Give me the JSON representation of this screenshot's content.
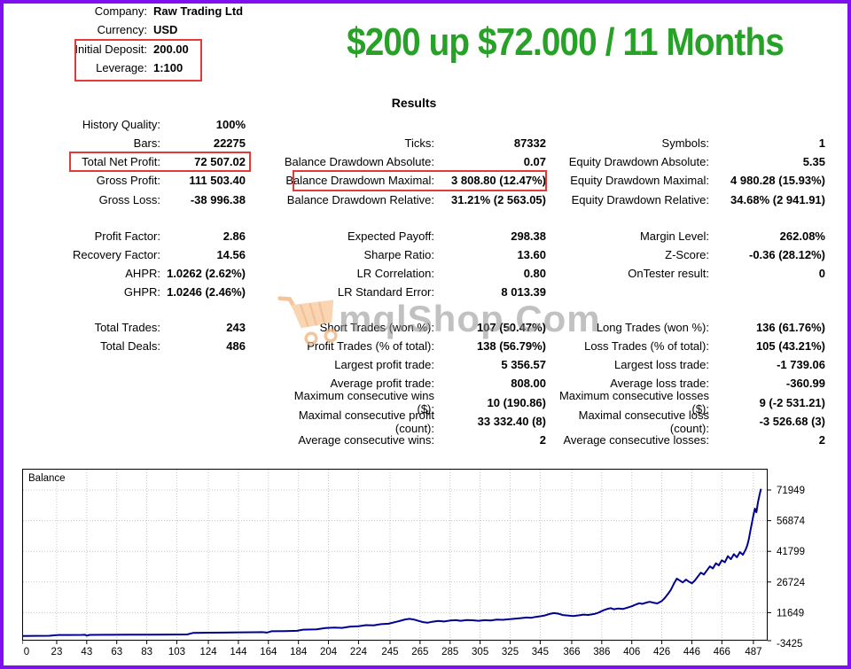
{
  "header": {
    "rows": [
      {
        "label": "Company:",
        "value": "Raw Trading Ltd"
      },
      {
        "label": "Currency:",
        "value": "USD"
      },
      {
        "label": "Initial Deposit:",
        "value": "200.00",
        "boxed": true
      },
      {
        "label": "Leverage:",
        "value": "1:100",
        "boxed": true
      }
    ],
    "banner_title": "$200 up $72.000 / 11 Months"
  },
  "results_heading": "Results",
  "watermark": {
    "text": "mqlShop.Com",
    "icon": "shopping-cart-icon"
  },
  "colors": {
    "accent_green": "#27a127",
    "highlight_red": "#e23a3a",
    "border_purple": "#7e10f0",
    "balance_line_navy": "#000090",
    "watermark_gray": "#8f8f8f",
    "cart_orange": "#f6bd8d"
  },
  "stats": {
    "col1": {
      "blocks": [
        {
          "rows": [
            {
              "label": "History Quality:",
              "value": "100%"
            },
            {
              "label": "Bars:",
              "value": "22275"
            },
            {
              "label": "Total Net Profit:",
              "value": "72 507.02",
              "boxed": true
            },
            {
              "label": "Gross Profit:",
              "value": "111 503.40"
            },
            {
              "label": "Gross Loss:",
              "value": "-38 996.38"
            }
          ]
        },
        {
          "rows": [
            {
              "label": "Profit Factor:",
              "value": "2.86"
            },
            {
              "label": "Recovery Factor:",
              "value": "14.56"
            },
            {
              "label": "AHPR:",
              "value": "1.0262 (2.62%)"
            },
            {
              "label": "GHPR:",
              "value": "1.0246 (2.46%)"
            }
          ]
        },
        {
          "rows": [
            {
              "label": "Total Trades:",
              "value": "243"
            },
            {
              "label": "Total Deals:",
              "value": "486"
            }
          ]
        }
      ]
    },
    "col2": {
      "blocks": [
        {
          "rows": [
            {
              "label": "Ticks:",
              "value": "87332"
            },
            {
              "label": "Balance Drawdown Absolute:",
              "value": "0.07"
            },
            {
              "label": "Balance Drawdown Maximal:",
              "value": "3 808.80 (12.47%)",
              "boxed": true
            },
            {
              "label": "Balance Drawdown Relative:",
              "value": "31.21% (2 563.05)"
            }
          ]
        },
        {
          "rows": [
            {
              "label": "Expected Payoff:",
              "value": "298.38"
            },
            {
              "label": "Sharpe Ratio:",
              "value": "13.60"
            },
            {
              "label": "LR Correlation:",
              "value": "0.80"
            },
            {
              "label": "LR Standard Error:",
              "value": "8 013.39"
            }
          ]
        },
        {
          "rows": [
            {
              "label": "Short Trades (won %):",
              "value": "107 (50.47%)"
            },
            {
              "label": "Profit Trades (% of total):",
              "value": "138 (56.79%)"
            },
            {
              "label": "Largest profit trade:",
              "value": "5 356.57"
            },
            {
              "label": "Average profit trade:",
              "value": "808.00"
            },
            {
              "label": "Maximum consecutive wins ($):",
              "value": "10 (190.86)"
            },
            {
              "label": "Maximal consecutive profit (count):",
              "value": "33 332.40 (8)"
            },
            {
              "label": "Average consecutive wins:",
              "value": "2"
            }
          ]
        }
      ]
    },
    "col3": {
      "blocks": [
        {
          "rows": [
            {
              "label": "Symbols:",
              "value": "1"
            },
            {
              "label": "Equity Drawdown Absolute:",
              "value": "5.35"
            },
            {
              "label": "Equity Drawdown Maximal:",
              "value": "4 980.28 (15.93%)"
            },
            {
              "label": "Equity Drawdown Relative:",
              "value": "34.68% (2 941.91)"
            }
          ]
        },
        {
          "rows": [
            {
              "label": "Margin Level:",
              "value": "262.08%"
            },
            {
              "label": "Z-Score:",
              "value": "-0.36 (28.12%)"
            },
            {
              "label": "OnTester result:",
              "value": "0"
            }
          ]
        },
        {
          "rows": [
            {
              "label": "Long Trades (won %):",
              "value": "136 (61.76%)"
            },
            {
              "label": "Loss Trades (% of total):",
              "value": "105 (43.21%)"
            },
            {
              "label": "Largest loss trade:",
              "value": "-1 739.06"
            },
            {
              "label": "Average loss trade:",
              "value": "-360.99"
            },
            {
              "label": "Maximum consecutive losses ($):",
              "value": "9 (-2 531.21)"
            },
            {
              "label": "Maximal consecutive loss (count):",
              "value": "-3 526.68 (3)"
            },
            {
              "label": "Average consecutive losses:",
              "value": "2"
            }
          ]
        }
      ]
    }
  },
  "chart_data": {
    "type": "line",
    "title": "Balance",
    "legend_label": "Balance",
    "x_ticks": [
      0,
      23,
      43,
      63,
      83,
      103,
      124,
      144,
      164,
      184,
      204,
      224,
      245,
      265,
      285,
      305,
      325,
      345,
      366,
      386,
      406,
      426,
      446,
      466,
      487
    ],
    "y_ticks": [
      71949,
      56874,
      41799,
      26724,
      11649,
      -3425
    ],
    "x_range": [
      0,
      496.5
    ],
    "y_range": [
      -2120,
      82406
    ],
    "grid": true,
    "legend_position": "top-left-inside",
    "series": [
      {
        "name": "Balance",
        "color": "#000090",
        "points": [
          [
            0,
            200
          ],
          [
            8,
            230
          ],
          [
            18,
            260
          ],
          [
            24,
            650
          ],
          [
            30,
            680
          ],
          [
            40,
            720
          ],
          [
            42,
            740
          ],
          [
            43,
            300
          ],
          [
            45,
            700
          ],
          [
            55,
            760
          ],
          [
            70,
            800
          ],
          [
            85,
            840
          ],
          [
            100,
            880
          ],
          [
            110,
            920
          ],
          [
            114,
            1700
          ],
          [
            125,
            1800
          ],
          [
            140,
            1900
          ],
          [
            155,
            2000
          ],
          [
            160,
            2050
          ],
          [
            163,
            1850
          ],
          [
            166,
            2500
          ],
          [
            175,
            2600
          ],
          [
            183,
            2700
          ],
          [
            187,
            3300
          ],
          [
            196,
            3400
          ],
          [
            202,
            4100
          ],
          [
            208,
            4300
          ],
          [
            213,
            4150
          ],
          [
            218,
            4700
          ],
          [
            224,
            4950
          ],
          [
            229,
            5500
          ],
          [
            234,
            5400
          ],
          [
            239,
            6000
          ],
          [
            244,
            6200
          ],
          [
            249,
            7100
          ],
          [
            252,
            7700
          ],
          [
            255,
            8300
          ],
          [
            258,
            8600
          ],
          [
            261,
            8250
          ],
          [
            264,
            7600
          ],
          [
            267,
            7000
          ],
          [
            270,
            6700
          ],
          [
            273,
            7150
          ],
          [
            277,
            7550
          ],
          [
            281,
            7300
          ],
          [
            285,
            7750
          ],
          [
            289,
            7950
          ],
          [
            292,
            7650
          ],
          [
            296,
            8050
          ],
          [
            300,
            7900
          ],
          [
            304,
            7650
          ],
          [
            308,
            7950
          ],
          [
            312,
            7800
          ],
          [
            316,
            8250
          ],
          [
            320,
            8100
          ],
          [
            324,
            8400
          ],
          [
            328,
            8650
          ],
          [
            332,
            8950
          ],
          [
            336,
            9250
          ],
          [
            339,
            9100
          ],
          [
            342,
            9550
          ],
          [
            345,
            9850
          ],
          [
            348,
            10250
          ],
          [
            351,
            10950
          ],
          [
            354,
            11450
          ],
          [
            357,
            11150
          ],
          [
            360,
            10450
          ],
          [
            364,
            10150
          ],
          [
            367,
            9950
          ],
          [
            371,
            10350
          ],
          [
            374,
            10700
          ],
          [
            377,
            10500
          ],
          [
            381,
            11000
          ],
          [
            384,
            11700
          ],
          [
            387,
            12800
          ],
          [
            390,
            13500
          ],
          [
            392,
            13850
          ],
          [
            394,
            13300
          ],
          [
            397,
            13700
          ],
          [
            400,
            13450
          ],
          [
            403,
            14100
          ],
          [
            406,
            14800
          ],
          [
            409,
            15750
          ],
          [
            411,
            16250
          ],
          [
            413,
            15950
          ],
          [
            416,
            16650
          ],
          [
            418,
            16950
          ],
          [
            421,
            16450
          ],
          [
            423,
            16200
          ],
          [
            426,
            17400
          ],
          [
            428,
            18900
          ],
          [
            430,
            20800
          ],
          [
            432,
            22800
          ],
          [
            434,
            25800
          ],
          [
            436,
            28400
          ],
          [
            438,
            27400
          ],
          [
            440,
            26500
          ],
          [
            442,
            27900
          ],
          [
            444,
            26900
          ],
          [
            446,
            26100
          ],
          [
            448,
            27400
          ],
          [
            450,
            29400
          ],
          [
            452,
            31300
          ],
          [
            454,
            30400
          ],
          [
            456,
            32400
          ],
          [
            458,
            34400
          ],
          [
            460,
            33400
          ],
          [
            462,
            35900
          ],
          [
            464,
            34900
          ],
          [
            466,
            37400
          ],
          [
            468,
            36400
          ],
          [
            470,
            39400
          ],
          [
            472,
            37900
          ],
          [
            474,
            40400
          ],
          [
            476,
            38900
          ],
          [
            478,
            41400
          ],
          [
            480,
            40100
          ],
          [
            482,
            42900
          ],
          [
            483,
            44900
          ],
          [
            484,
            47900
          ],
          [
            485,
            51900
          ],
          [
            486,
            55700
          ],
          [
            487,
            59500
          ],
          [
            488,
            62800
          ],
          [
            489,
            61000
          ],
          [
            490,
            65800
          ],
          [
            491,
            69300
          ],
          [
            492,
            72507
          ]
        ]
      }
    ]
  }
}
